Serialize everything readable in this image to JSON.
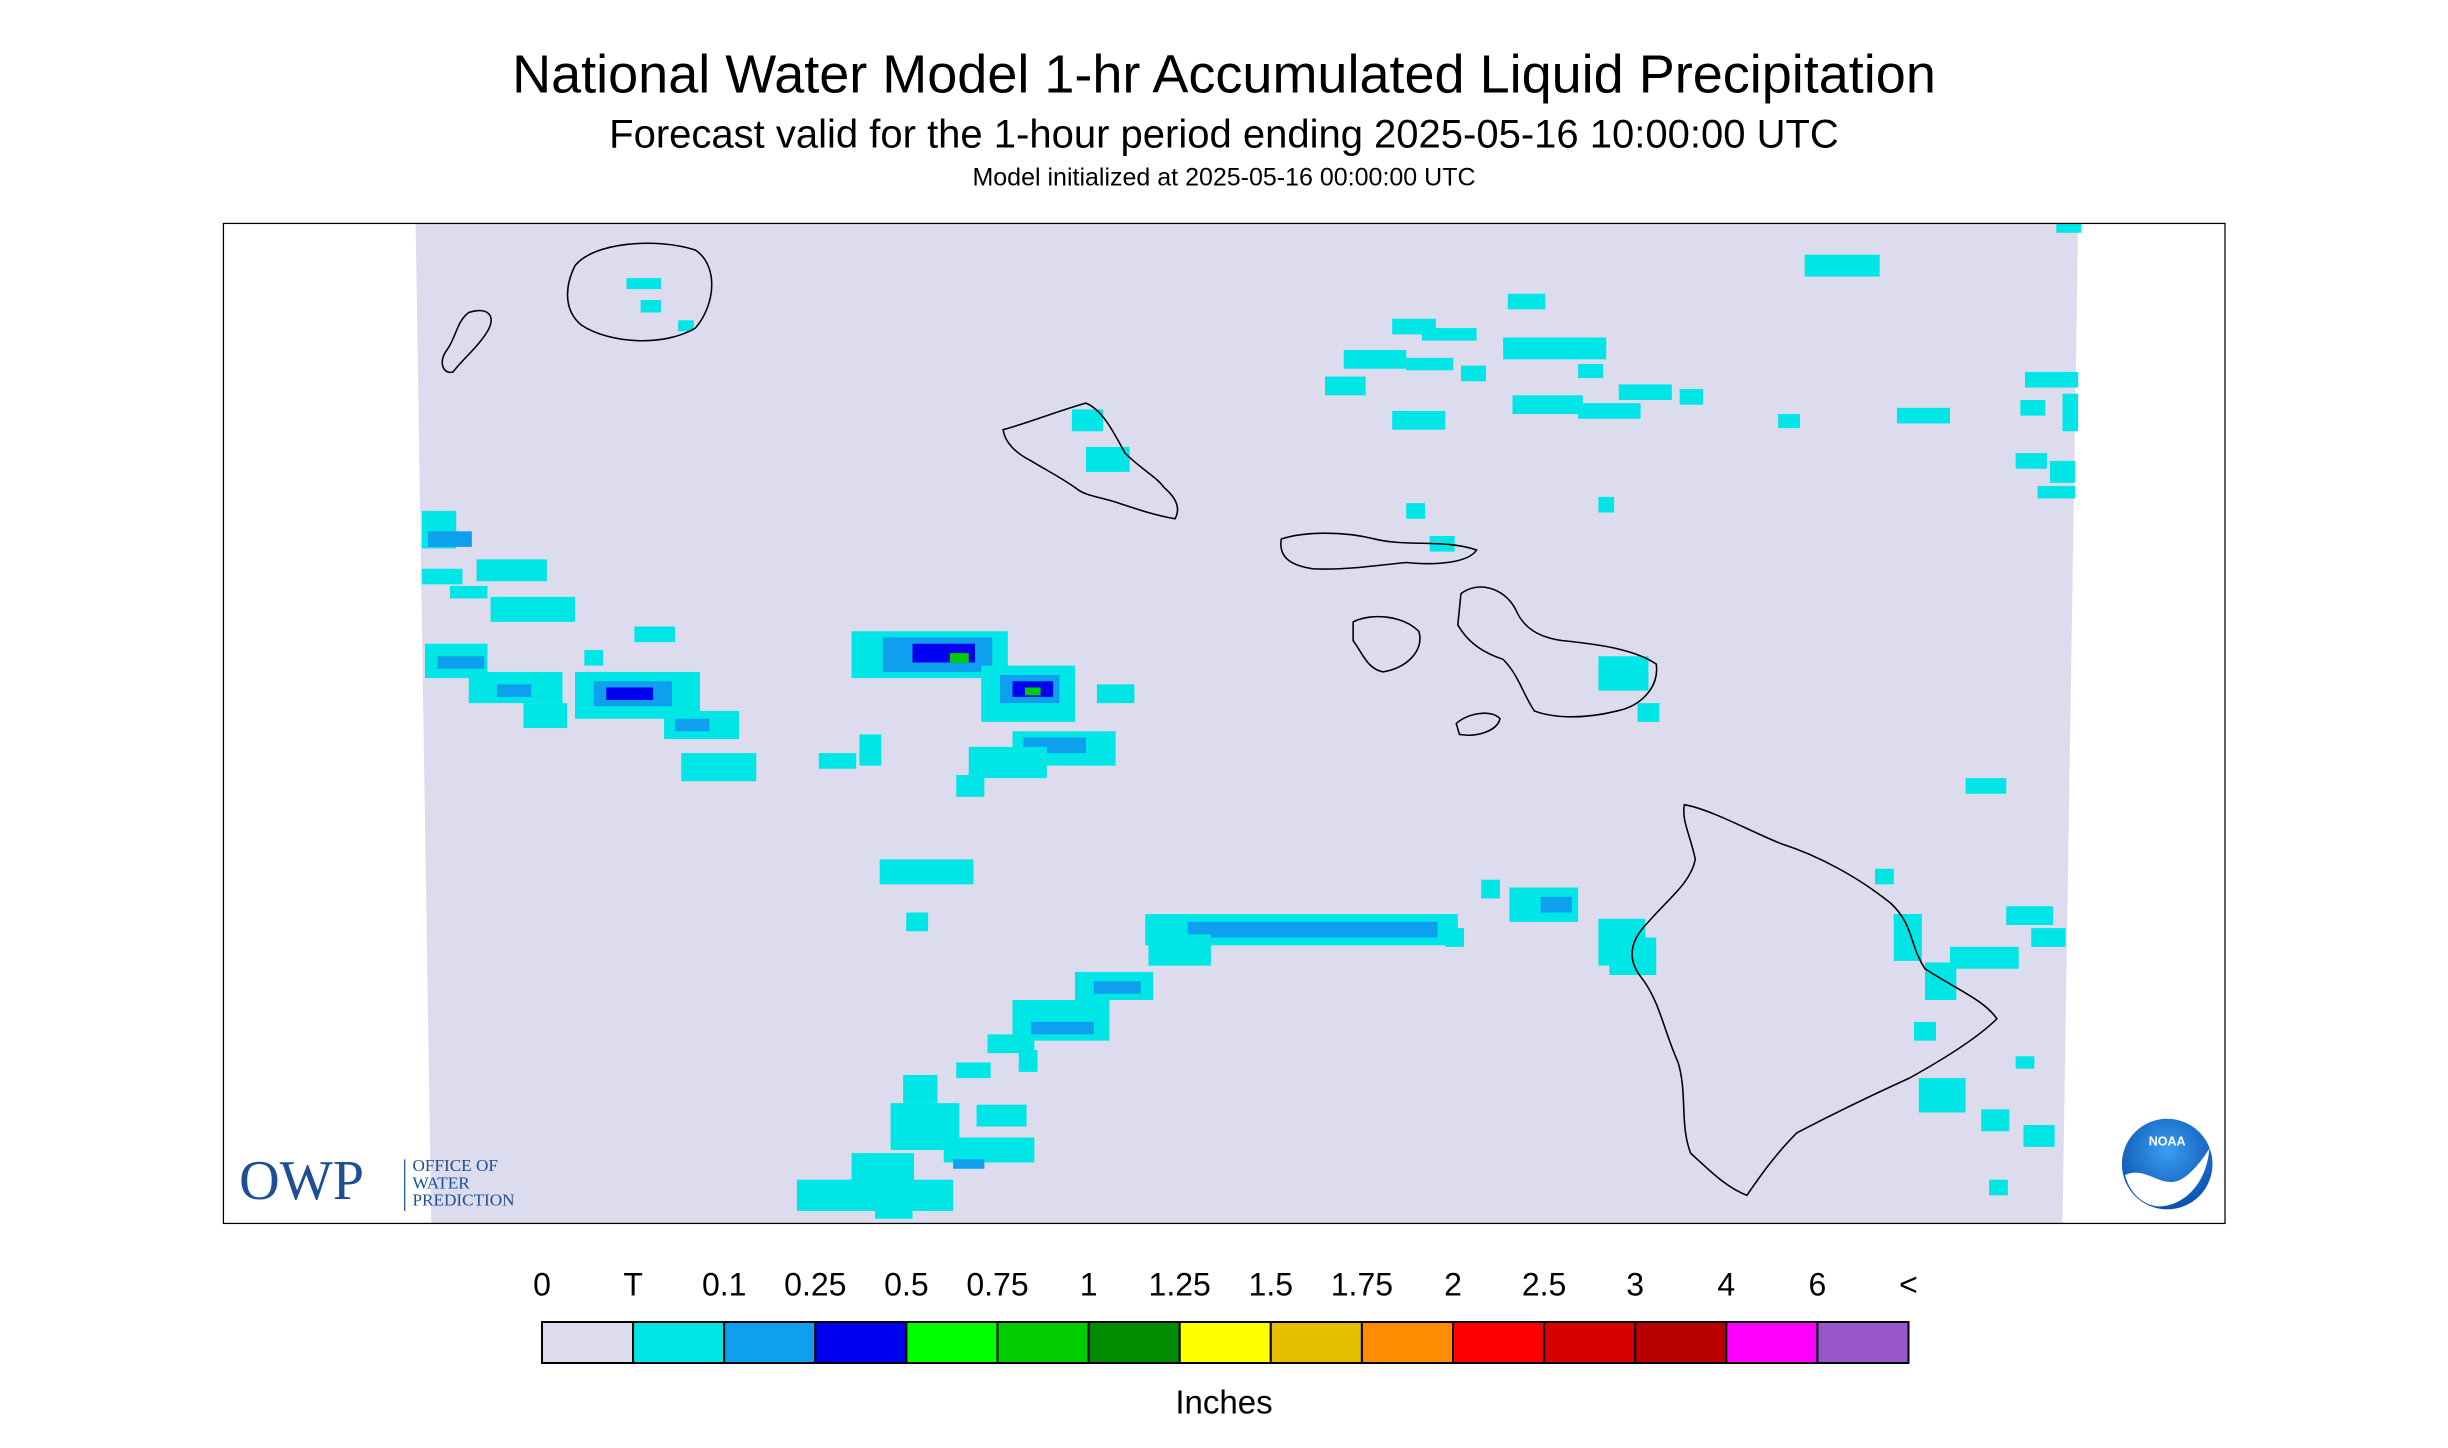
{
  "header": {
    "title": "National Water Model 1-hr Accumulated Liquid Precipitation",
    "subtitle": "Forecast valid for the 1-hour period ending 2025-05-16 10:00:00 UTC",
    "init": "Model initialized at 2025-05-16 00:00:00 UTC"
  },
  "legend": {
    "labels": [
      "0",
      "T",
      "0.1",
      "0.25",
      "0.5",
      "0.75",
      "1",
      "1.25",
      "1.5",
      "1.75",
      "2",
      "2.5",
      "3",
      "4",
      "6",
      "<"
    ],
    "colors": [
      "#dcdcee",
      "#00e6e6",
      "#0ea0ee",
      "#0000f0",
      "#00ff00",
      "#00cc00",
      "#008c00",
      "#ffff00",
      "#e6be00",
      "#ff8c00",
      "#ff0000",
      "#d60000",
      "#b80000",
      "#ff00ff",
      "#9955cc"
    ],
    "unit": "Inches"
  },
  "logo": {
    "owp": "OWP",
    "lines": [
      "OFFICE OF",
      "WATER",
      "PREDICTION"
    ],
    "noaa": "NOAA"
  }
}
